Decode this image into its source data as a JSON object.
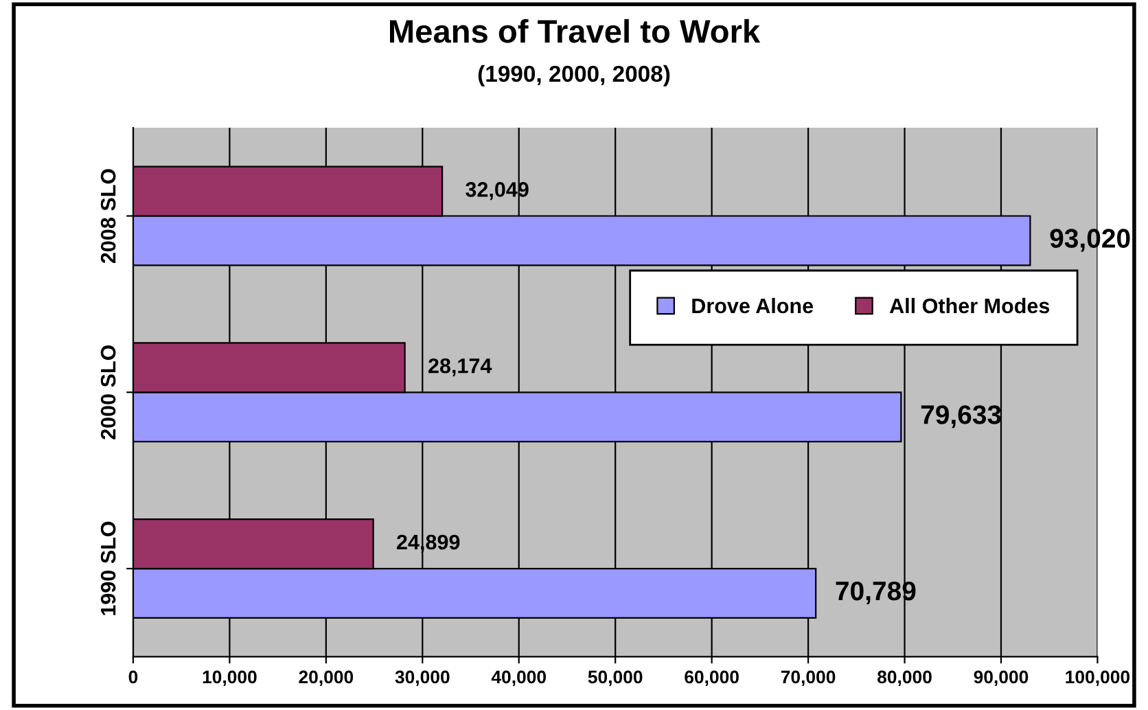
{
  "chart_data": {
    "type": "bar",
    "orientation": "horizontal",
    "title": "Means of Travel to Work",
    "subtitle": "(1990, 2000, 2008)",
    "categories": [
      "2008 SLO",
      "2000 SLO",
      "1990 SLO"
    ],
    "series": [
      {
        "name": "Drove Alone",
        "color": "#9999ff",
        "values": [
          93020,
          79633,
          70789
        ],
        "value_labels": [
          "93,020",
          "79,633",
          "70,789"
        ]
      },
      {
        "name": "All Other Modes",
        "color": "#993366",
        "values": [
          32049,
          28174,
          24899
        ],
        "value_labels": [
          "32,049",
          "28,174",
          "24,899"
        ]
      }
    ],
    "xlim": [
      0,
      100000
    ],
    "xticks": [
      {
        "value": 0,
        "label": "0"
      },
      {
        "value": 10000,
        "label": "10,000"
      },
      {
        "value": 20000,
        "label": "20,000"
      },
      {
        "value": 30000,
        "label": "30,000"
      },
      {
        "value": 40000,
        "label": "40,000"
      },
      {
        "value": 50000,
        "label": "50,000"
      },
      {
        "value": 60000,
        "label": "60,000"
      },
      {
        "value": 70000,
        "label": "70,000"
      },
      {
        "value": 80000,
        "label": "80,000"
      },
      {
        "value": 90000,
        "label": "90,000"
      },
      {
        "value": 100000,
        "label": "100,000"
      }
    ],
    "grid": "x",
    "legend": "right"
  }
}
